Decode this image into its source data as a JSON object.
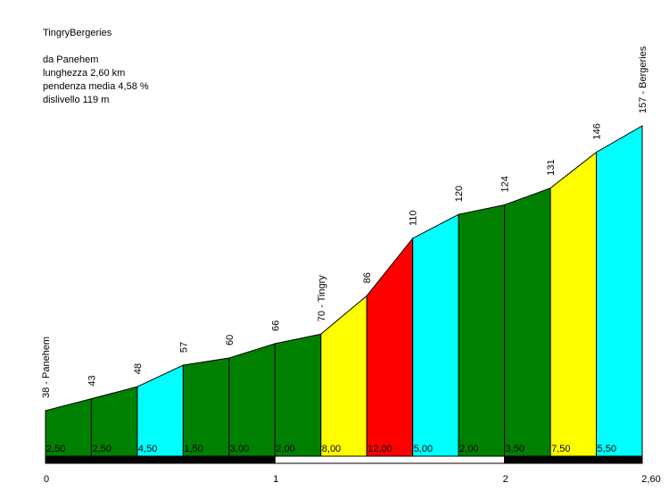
{
  "header": {
    "title": "TingryBergeries",
    "from": "da Panehem",
    "length": "lunghezza 2,60 km",
    "avg_gradient": "pendenza media 4,58 %",
    "elevation_gain": "dislivello 119 m"
  },
  "chart_data": {
    "type": "area",
    "title": "TingryBergeries",
    "xlabel": "",
    "ylabel": "",
    "xlim": [
      0,
      2.6
    ],
    "x_ticks": [
      "0",
      "1",
      "2",
      "2,60"
    ],
    "point_labels": [
      "38 - Panehem",
      "43",
      "48",
      "57",
      "60",
      "66",
      "70 - Tingry",
      "86",
      "110",
      "120",
      "124",
      "131",
      "146",
      "157 - Bergeries"
    ],
    "elevations": [
      38,
      43,
      48,
      57,
      60,
      66,
      70,
      86,
      110,
      120,
      124,
      131,
      146,
      157
    ],
    "segments": [
      {
        "gradient": "2,50",
        "color": "#008000"
      },
      {
        "gradient": "2,50",
        "color": "#008000"
      },
      {
        "gradient": "4,50",
        "color": "#00ffff"
      },
      {
        "gradient": "1,50",
        "color": "#008000"
      },
      {
        "gradient": "3,00",
        "color": "#008000"
      },
      {
        "gradient": "2,00",
        "color": "#008000"
      },
      {
        "gradient": "8,00",
        "color": "#ffff00"
      },
      {
        "gradient": "12,00",
        "color": "#ff0000"
      },
      {
        "gradient": "5,00",
        "color": "#00ffff"
      },
      {
        "gradient": "2,00",
        "color": "#008000"
      },
      {
        "gradient": "3,50",
        "color": "#008000"
      },
      {
        "gradient": "7,50",
        "color": "#ffff00"
      },
      {
        "gradient": "5,50",
        "color": "#00ffff"
      }
    ],
    "grid": false,
    "legend": "none"
  }
}
